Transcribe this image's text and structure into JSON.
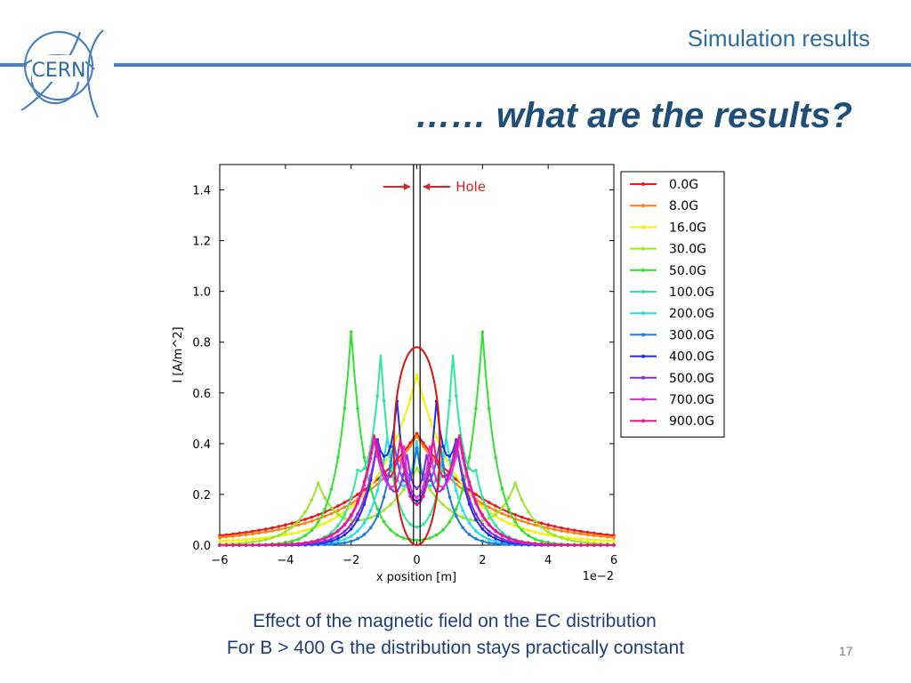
{
  "header": {
    "title": "Simulation results",
    "logo_text": "CERN",
    "logo_icon": "cern-logo-icon"
  },
  "slide": {
    "title": "…… what are the results?",
    "caption_line1": "Effect of the magnetic field on the EC distribution",
    "caption_line2": "For B > 400 G the distribution stays practically constant",
    "page_number": "17"
  },
  "chart_data": {
    "type": "line",
    "xlabel": "x position [m]",
    "ylabel": "I [A/m^2]",
    "x_scale_label": "1e−2",
    "xlim": [
      -6,
      6
    ],
    "ylim": [
      0,
      1.5
    ],
    "x_ticks": [
      -6,
      -4,
      -2,
      0,
      2,
      4,
      6
    ],
    "x_tick_labels": [
      "−6",
      "−4",
      "−2",
      "0",
      "2",
      "4",
      "6"
    ],
    "y_ticks": [
      0.0,
      0.2,
      0.4,
      0.6,
      0.8,
      1.0,
      1.2,
      1.4
    ],
    "y_tick_labels": [
      "0.0",
      "0.2",
      "0.4",
      "0.6",
      "0.8",
      "1.0",
      "1.2",
      "1.4"
    ],
    "legend_placement": "outside-right-top",
    "annotation": {
      "text": "Hole",
      "x_edges": [
        -0.1,
        0.1
      ],
      "color": "#e02020"
    },
    "highlight_ellipse": {
      "cx": 0,
      "cy": 0.39,
      "rx": 0.7,
      "ry": 0.39,
      "color": "#dd1111"
    },
    "series": [
      {
        "name": "0.0G",
        "color": "#e41a1c",
        "peaks": [
          [
            0,
            0.43,
            2.2
          ]
        ],
        "floor": 0.01
      },
      {
        "name": "8.0G",
        "color": "#ff7f0e",
        "peaks": [
          [
            0,
            0.42,
            2.0
          ]
        ],
        "floor": 0.01
      },
      {
        "name": "16.0G",
        "color": "#f2f20a",
        "peaks": [
          [
            0,
            0.66,
            1.3
          ]
        ],
        "floor": 0.01
      },
      {
        "name": "30.0G",
        "color": "#9be62d",
        "peaks": [
          [
            -3.0,
            0.22,
            0.6
          ],
          [
            3.0,
            0.22,
            0.6
          ],
          [
            0,
            0.3,
            1.2
          ]
        ],
        "floor": 0.0
      },
      {
        "name": "50.0G",
        "color": "#2ee22e",
        "peaks": [
          [
            -2.0,
            0.84,
            0.45
          ],
          [
            2.0,
            0.84,
            0.45
          ]
        ],
        "floor": 0.0
      },
      {
        "name": "100.0G",
        "color": "#2ee7a0",
        "peaks": [
          [
            -1.1,
            0.7,
            0.35
          ],
          [
            1.1,
            0.7,
            0.35
          ],
          [
            -1.8,
            0.2,
            0.5
          ],
          [
            1.8,
            0.2,
            0.5
          ]
        ],
        "floor": 0.0
      },
      {
        "name": "200.0G",
        "color": "#22e0e6",
        "peaks": [
          [
            -0.9,
            0.4,
            0.45
          ],
          [
            0.9,
            0.4,
            0.45
          ],
          [
            0,
            0.3,
            0.3
          ]
        ],
        "floor": 0.0
      },
      {
        "name": "300.0G",
        "color": "#1f7be0",
        "peaks": [
          [
            -0.7,
            0.38,
            0.4
          ],
          [
            0.7,
            0.38,
            0.4
          ],
          [
            0,
            0.25,
            0.25
          ]
        ],
        "floor": 0.0
      },
      {
        "name": "400.0G",
        "color": "#1f2ee6",
        "peaks": [
          [
            -0.6,
            0.46,
            0.3
          ],
          [
            0.6,
            0.46,
            0.3
          ],
          [
            -1.2,
            0.35,
            0.45
          ],
          [
            1.2,
            0.35,
            0.45
          ]
        ],
        "floor": 0.0
      },
      {
        "name": "500.0G",
        "color": "#8a2be2",
        "peaks": [
          [
            -1.2,
            0.4,
            0.5
          ],
          [
            1.2,
            0.4,
            0.5
          ],
          [
            -0.3,
            0.25,
            0.25
          ],
          [
            0.3,
            0.25,
            0.25
          ]
        ],
        "floor": 0.0
      },
      {
        "name": "700.0G",
        "color": "#e62ee6",
        "peaks": [
          [
            -1.3,
            0.4,
            0.55
          ],
          [
            1.3,
            0.4,
            0.55
          ],
          [
            -0.4,
            0.28,
            0.25
          ],
          [
            0.4,
            0.28,
            0.25
          ]
        ],
        "floor": 0.0
      },
      {
        "name": "900.0G",
        "color": "#e6198c",
        "peaks": [
          [
            -1.3,
            0.42,
            0.55
          ],
          [
            1.3,
            0.42,
            0.55
          ],
          [
            -0.5,
            0.3,
            0.25
          ],
          [
            0.5,
            0.3,
            0.25
          ]
        ],
        "floor": 0.0
      }
    ]
  }
}
